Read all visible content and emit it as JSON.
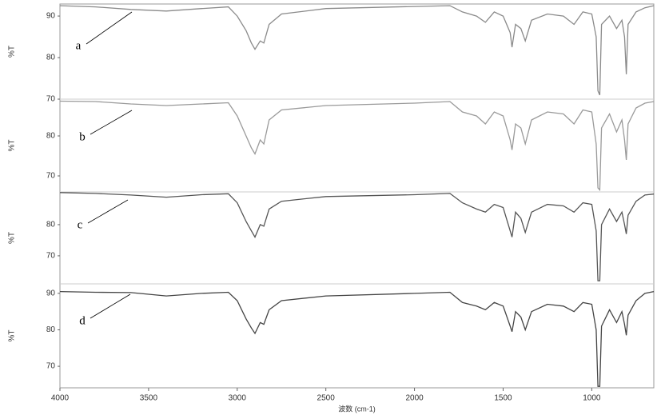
{
  "chart_data": [
    {
      "type": "line",
      "label": "a",
      "y_label": "%T",
      "color": "#8a8a8a",
      "xlim": [
        4000,
        650
      ],
      "ylim": [
        70,
        92.9
      ],
      "yticks": [
        70,
        80,
        90
      ],
      "x": [
        4000,
        3800,
        3600,
        3400,
        3200,
        3050,
        3000,
        2950,
        2920,
        2900,
        2870,
        2850,
        2820,
        2750,
        2500,
        2000,
        1800,
        1730,
        1650,
        1600,
        1550,
        1500,
        1460,
        1450,
        1430,
        1400,
        1375,
        1340,
        1250,
        1160,
        1100,
        1050,
        1000,
        975,
        965,
        955,
        945,
        900,
        860,
        830,
        815,
        805,
        795,
        750,
        700,
        650
      ],
      "values": [
        92.5,
        92.2,
        91.6,
        91.2,
        91.8,
        92.2,
        90,
        86.5,
        83.5,
        82,
        84,
        83.5,
        88,
        90.5,
        91.8,
        92.3,
        92.5,
        91,
        90,
        88.5,
        91,
        90,
        86,
        82.5,
        88,
        87,
        84,
        89,
        90.5,
        90,
        88,
        91,
        90.5,
        85,
        72,
        71,
        88,
        90,
        87,
        89,
        85,
        76,
        88,
        91,
        92,
        92.5
      ]
    },
    {
      "type": "line",
      "label": "b",
      "y_label": "%T",
      "color": "#9a9a9a",
      "xlim": [
        4000,
        650
      ],
      "ylim": [
        66,
        89.2
      ],
      "yticks": [
        70,
        80
      ],
      "x": [
        4000,
        3800,
        3600,
        3400,
        3200,
        3050,
        3000,
        2950,
        2920,
        2900,
        2870,
        2850,
        2820,
        2750,
        2500,
        2000,
        1800,
        1730,
        1650,
        1600,
        1550,
        1500,
        1460,
        1450,
        1430,
        1400,
        1375,
        1340,
        1250,
        1160,
        1100,
        1050,
        1000,
        975,
        965,
        955,
        945,
        900,
        860,
        830,
        815,
        805,
        795,
        750,
        700,
        650
      ],
      "values": [
        88.7,
        88.6,
        88,
        87.6,
        88,
        88.3,
        85,
        80,
        77,
        75.5,
        79,
        78,
        84,
        86.5,
        87.6,
        88.2,
        88.6,
        86,
        85,
        83,
        86,
        85,
        79,
        76.5,
        83,
        82,
        78,
        84,
        86,
        85.5,
        83,
        86.5,
        86,
        78,
        67,
        66.5,
        82,
        85.5,
        81,
        84,
        79,
        74,
        83,
        87,
        88.2,
        88.6
      ]
    },
    {
      "type": "line",
      "label": "c",
      "y_label": "%T",
      "color": "#555555",
      "xlim": [
        4000,
        650
      ],
      "ylim": [
        61,
        90.5
      ],
      "yticks": [
        70,
        80
      ],
      "x": [
        4000,
        3800,
        3600,
        3400,
        3200,
        3050,
        3000,
        2950,
        2920,
        2900,
        2870,
        2850,
        2820,
        2750,
        2500,
        2000,
        1800,
        1730,
        1650,
        1600,
        1550,
        1500,
        1460,
        1450,
        1430,
        1400,
        1375,
        1340,
        1250,
        1160,
        1100,
        1050,
        1000,
        975,
        965,
        955,
        945,
        900,
        860,
        830,
        815,
        805,
        795,
        750,
        700,
        650
      ],
      "values": [
        90.3,
        90,
        89.5,
        88.8,
        89.6,
        89.9,
        87,
        81,
        78,
        76,
        80,
        79.5,
        85,
        87.5,
        89,
        89.6,
        90,
        87,
        85,
        84,
        86.5,
        85.5,
        78,
        76,
        84,
        82,
        77.5,
        84,
        86.5,
        86,
        84,
        87,
        86.5,
        78,
        62,
        62,
        80,
        85,
        81,
        84,
        80,
        77,
        83,
        87.5,
        89.5,
        89.8
      ]
    },
    {
      "type": "line",
      "label": "d",
      "y_label": "%T",
      "color": "#444444",
      "xlim": [
        4000,
        650
      ],
      "ylim": [
        64.1,
        92.6
      ],
      "yticks": [
        70,
        80,
        90
      ],
      "xticks": [
        4000,
        3500,
        3000,
        2500,
        2000,
        1500,
        1000
      ],
      "x_label": "波数 (cm-1)",
      "x": [
        4000,
        3800,
        3600,
        3400,
        3200,
        3050,
        3000,
        2950,
        2920,
        2900,
        2870,
        2850,
        2820,
        2750,
        2500,
        2000,
        1800,
        1730,
        1650,
        1600,
        1550,
        1500,
        1460,
        1450,
        1430,
        1400,
        1375,
        1340,
        1250,
        1160,
        1100,
        1050,
        1000,
        975,
        965,
        955,
        945,
        900,
        860,
        830,
        815,
        805,
        795,
        750,
        700,
        650
      ],
      "values": [
        90.5,
        90.3,
        90.2,
        89.3,
        90,
        90.3,
        88,
        83,
        80.5,
        79,
        82,
        81.5,
        85.5,
        88,
        89.3,
        90,
        90.3,
        87.5,
        86.5,
        85.5,
        87.5,
        86.5,
        81,
        79.5,
        85,
        83.5,
        80,
        85,
        87,
        86.5,
        85,
        87.5,
        87,
        80,
        64.5,
        64.5,
        81,
        85.5,
        82,
        85,
        81.5,
        78.5,
        84,
        88,
        90,
        90.5
      ]
    }
  ]
}
